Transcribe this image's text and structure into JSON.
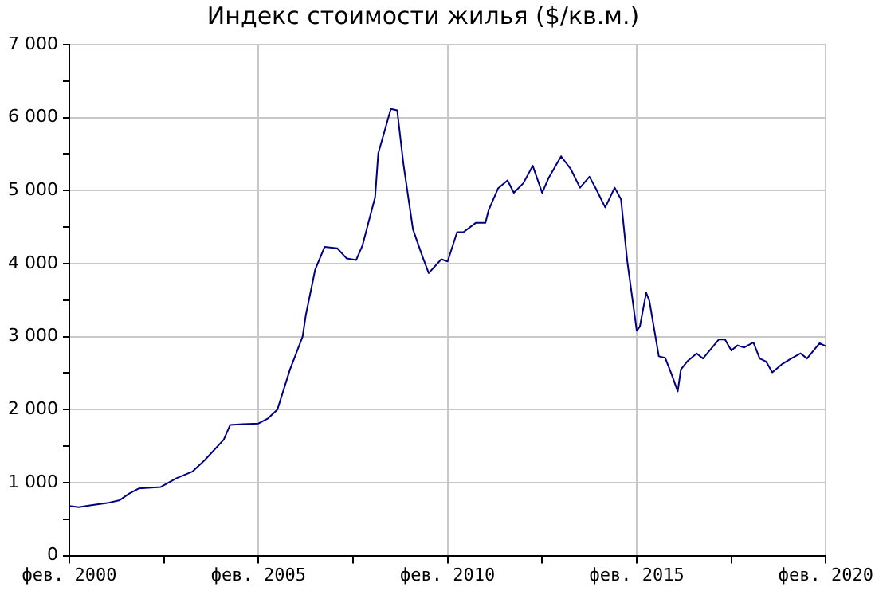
{
  "chart_data": {
    "type": "line",
    "title": "Индекс стоимости жилья ($/кв.м.)",
    "x": [
      "2000-02",
      "2000-05",
      "2000-09",
      "2001-02",
      "2001-06",
      "2001-09",
      "2001-12",
      "2002-07",
      "2002-12",
      "2003-05",
      "2003-09",
      "2004-03",
      "2004-05",
      "2004-09",
      "2005-02",
      "2005-05",
      "2005-08",
      "2005-12",
      "2006-04",
      "2006-05",
      "2006-08",
      "2006-11",
      "2007-03",
      "2007-06",
      "2007-09",
      "2007-11",
      "2008-03",
      "2008-04",
      "2008-08",
      "2008-10",
      "2008-12",
      "2009-03",
      "2009-06",
      "2009-08",
      "2009-12",
      "2010-02",
      "2010-05",
      "2010-07",
      "2010-11",
      "2011-02",
      "2011-03",
      "2011-06",
      "2011-09",
      "2011-11",
      "2012-02",
      "2012-05",
      "2012-08",
      "2012-10",
      "2013-02",
      "2013-05",
      "2013-08",
      "2013-11",
      "2014-01",
      "2014-04",
      "2014-07",
      "2014-09",
      "2014-11",
      "2015-02",
      "2015-03",
      "2015-05",
      "2015-06",
      "2015-09",
      "2015-11",
      "2016-01",
      "2016-03",
      "2016-04",
      "2016-06",
      "2016-09",
      "2016-11",
      "2017-04",
      "2017-06",
      "2017-08",
      "2017-10",
      "2017-12",
      "2018-03",
      "2018-05",
      "2018-07",
      "2018-09",
      "2018-12",
      "2019-03",
      "2019-06",
      "2019-08",
      "2019-12",
      "2020-02"
    ],
    "series": [
      {
        "color": "#000080",
        "values": [
          680,
          665,
          690,
          720,
          760,
          850,
          920,
          940,
          1060,
          1150,
          1310,
          1590,
          1790,
          1800,
          1810,
          1880,
          2000,
          2550,
          3000,
          3290,
          3920,
          4230,
          4210,
          4070,
          4050,
          4250,
          4910,
          5510,
          6120,
          6100,
          5360,
          4470,
          4100,
          3870,
          4060,
          4030,
          4430,
          4430,
          4560,
          4560,
          4730,
          5030,
          5140,
          4970,
          5100,
          5340,
          4970,
          5170,
          5470,
          5300,
          5040,
          5190,
          5030,
          4770,
          5040,
          4880,
          4030,
          3080,
          3140,
          3600,
          3490,
          2730,
          2710,
          2490,
          2250,
          2550,
          2660,
          2770,
          2700,
          2960,
          2960,
          2810,
          2880,
          2850,
          2920,
          2700,
          2660,
          2510,
          2620,
          2700,
          2770,
          2700,
          2910,
          2870
        ]
      }
    ],
    "xlim": [
      "2000-02",
      "2020-02"
    ],
    "xticks": [
      {
        "value": "2000-02",
        "label": "фев. 2000"
      },
      {
        "value": "2002-08",
        "label": null
      },
      {
        "value": "2005-02",
        "label": "фев. 2005"
      },
      {
        "value": "2007-08",
        "label": null
      },
      {
        "value": "2010-02",
        "label": "фев. 2010"
      },
      {
        "value": "2012-08",
        "label": null
      },
      {
        "value": "2015-02",
        "label": "фев. 2015"
      },
      {
        "value": "2017-08",
        "label": null
      },
      {
        "value": "2020-02",
        "label": "фев. 2020"
      }
    ],
    "ylim": [
      0,
      7000
    ],
    "yticks": [
      {
        "value": 0,
        "label": "0"
      },
      {
        "value": 500,
        "label": null
      },
      {
        "value": 1000,
        "label": "1 000"
      },
      {
        "value": 1500,
        "label": null
      },
      {
        "value": 2000,
        "label": "2 000"
      },
      {
        "value": 2500,
        "label": null
      },
      {
        "value": 3000,
        "label": "3 000"
      },
      {
        "value": 3500,
        "label": null
      },
      {
        "value": 4000,
        "label": "4 000"
      },
      {
        "value": 4500,
        "label": null
      },
      {
        "value": 5000,
        "label": "5 000"
      },
      {
        "value": 5500,
        "label": null
      },
      {
        "value": 6000,
        "label": "6 000"
      },
      {
        "value": 6500,
        "label": null
      },
      {
        "value": 7000,
        "label": "7 000"
      }
    ],
    "grid": true,
    "legend": false,
    "marker": "none",
    "line_style": "solid"
  }
}
